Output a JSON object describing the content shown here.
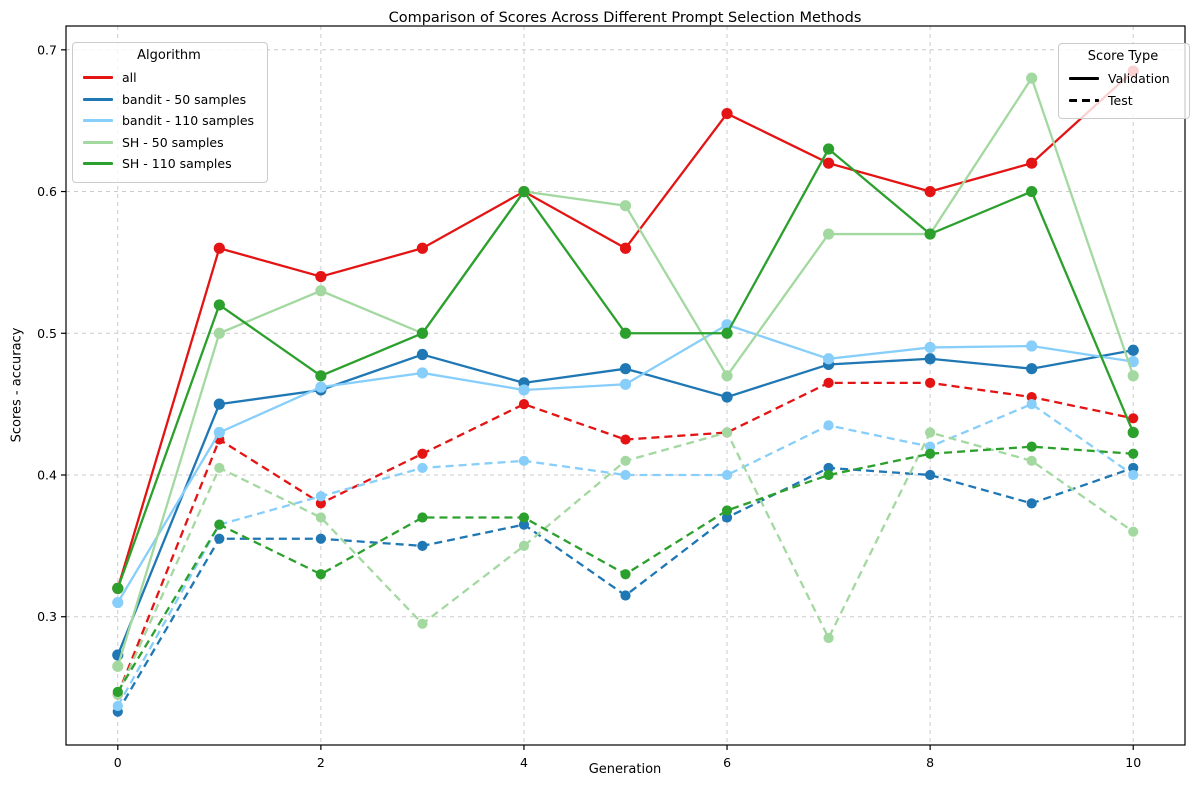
{
  "legend_algorithm": {
    "title": "Algorithm",
    "entries": [
      {
        "label": "all",
        "color": "#e41414"
      },
      {
        "label": "bandit - 50 samples",
        "color": "#1f77b4"
      },
      {
        "label": "bandit - 110 samples",
        "color": "#87cefa"
      },
      {
        "label": "SH - 50 samples",
        "color": "#a3d9a0"
      },
      {
        "label": "SH - 110 samples",
        "color": "#2ca02c"
      }
    ]
  },
  "legend_score_type": {
    "title": "Score Type",
    "entries": [
      {
        "label": "Validation",
        "style": "solid"
      },
      {
        "label": "Test",
        "style": "dashed"
      }
    ]
  },
  "chart_data": {
    "type": "line",
    "title": "Comparison of Scores Across Different Prompt Selection Methods",
    "xlabel": "Generation",
    "ylabel": "Scores - accuracy",
    "x": [
      0,
      1,
      2,
      3,
      4,
      5,
      6,
      7,
      8,
      9,
      10
    ],
    "xticks": [
      0,
      2,
      4,
      6,
      8,
      10
    ],
    "yticks": [
      0.3,
      0.4,
      0.5,
      0.6,
      0.7
    ],
    "xlim": [
      -0.51,
      10.51
    ],
    "ylim": [
      0.2095,
      0.7168
    ],
    "grid": true,
    "legend_positions": {
      "algorithm": "upper left",
      "score_type": "upper right"
    },
    "series": [
      {
        "name": "all",
        "score_type": "Validation",
        "color": "#e41414",
        "dash": "solid",
        "values": [
          0.32,
          0.56,
          0.54,
          0.56,
          0.6,
          0.56,
          0.655,
          0.62,
          0.6,
          0.62,
          0.685
        ]
      },
      {
        "name": "all",
        "score_type": "Test",
        "color": "#e41414",
        "dash": "dashed",
        "values": [
          0.245,
          0.425,
          0.38,
          0.415,
          0.45,
          0.425,
          0.43,
          0.465,
          0.465,
          0.455,
          0.44
        ]
      },
      {
        "name": "bandit - 50 samples",
        "score_type": "Validation",
        "color": "#1f77b4",
        "dash": "solid",
        "values": [
          0.273,
          0.45,
          0.46,
          0.485,
          0.465,
          0.475,
          0.455,
          0.478,
          0.482,
          0.475,
          0.488
        ]
      },
      {
        "name": "bandit - 50 samples",
        "score_type": "Test",
        "color": "#1f77b4",
        "dash": "dashed",
        "values": [
          0.233,
          0.355,
          0.355,
          0.35,
          0.365,
          0.315,
          0.37,
          0.405,
          0.4,
          0.38,
          0.405
        ]
      },
      {
        "name": "bandit - 110 samples",
        "score_type": "Validation",
        "color": "#87cefa",
        "dash": "solid",
        "values": [
          0.31,
          0.43,
          0.462,
          0.472,
          0.46,
          0.464,
          0.506,
          0.482,
          0.49,
          0.491,
          0.48
        ]
      },
      {
        "name": "bandit - 110 samples",
        "score_type": "Test",
        "color": "#87cefa",
        "dash": "dashed",
        "values": [
          0.237,
          0.365,
          0.385,
          0.405,
          0.41,
          0.4,
          0.4,
          0.435,
          0.42,
          0.45,
          0.4
        ]
      },
      {
        "name": "SH - 50 samples",
        "score_type": "Validation",
        "color": "#a3d9a0",
        "dash": "solid",
        "values": [
          0.265,
          0.5,
          0.53,
          0.5,
          0.6,
          0.59,
          0.47,
          0.57,
          0.57,
          0.68,
          0.47
        ]
      },
      {
        "name": "SH - 50 samples",
        "score_type": "Test",
        "color": "#a3d9a0",
        "dash": "dashed",
        "values": [
          0.245,
          0.405,
          0.37,
          0.295,
          0.35,
          0.41,
          0.43,
          0.285,
          0.43,
          0.41,
          0.36
        ]
      },
      {
        "name": "SH - 110 samples",
        "score_type": "Validation",
        "color": "#2ca02c",
        "dash": "solid",
        "values": [
          0.32,
          0.52,
          0.47,
          0.5,
          0.6,
          0.5,
          0.5,
          0.63,
          0.57,
          0.6,
          0.43
        ]
      },
      {
        "name": "SH - 110 samples",
        "score_type": "Test",
        "color": "#2ca02c",
        "dash": "dashed",
        "values": [
          0.247,
          0.365,
          0.33,
          0.37,
          0.37,
          0.33,
          0.375,
          0.4,
          0.415,
          0.42,
          0.415
        ]
      }
    ]
  }
}
